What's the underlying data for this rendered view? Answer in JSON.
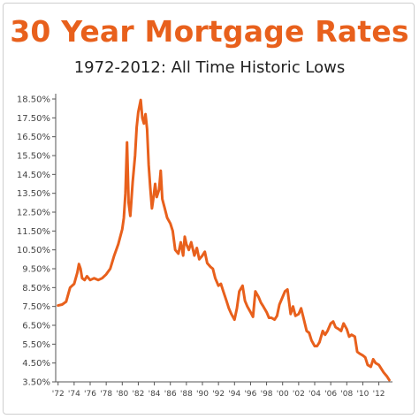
{
  "title": "30 Year Mortgage Rates",
  "subtitle": "1972-2012: All Time Historic Lows",
  "chart_data": {
    "type": "line",
    "title": "30 Year Mortgage Rates",
    "subtitle": "1972-2012: All Time Historic Lows",
    "xlabel": "",
    "ylabel": "",
    "xlim": [
      1971.7,
      2013.7
    ],
    "ylim": [
      3.5,
      18.5
    ],
    "grid": false,
    "legend": "none",
    "line_color": "#e8601c",
    "yticks": [
      3.5,
      4.5,
      5.5,
      6.5,
      7.5,
      8.5,
      9.5,
      10.5,
      11.5,
      12.5,
      13.5,
      14.5,
      15.5,
      16.5,
      17.5,
      18.5
    ],
    "ytick_labels": [
      "3.50%",
      "4.50%",
      "5.50%",
      "6.50%",
      "7.50%",
      "8.50%",
      "9.50%",
      "10.50%",
      "11.50%",
      "12.50%",
      "13.50%",
      "14.50%",
      "15.50%",
      "16.50%",
      "17.50%",
      "18.50%"
    ],
    "xticks": [
      1972,
      1974,
      1976,
      1978,
      1980,
      1982,
      1984,
      1986,
      1988,
      1990,
      1992,
      1994,
      1996,
      1998,
      2000,
      2002,
      2004,
      2006,
      2008,
      2010,
      2012
    ],
    "xtick_labels": [
      "'72",
      "'74",
      "'76",
      "'78",
      "'80",
      "'82",
      "'84",
      "'86",
      "'88",
      "'90",
      "'92",
      "'94",
      "'96",
      "'98",
      "'00",
      "'02",
      "'04",
      "'06",
      "'08",
      "'10",
      "'12"
    ],
    "series": [
      {
        "x": [
          1972.0,
          1972.5,
          1973.0,
          1973.5,
          1974.0,
          1974.4,
          1974.6,
          1974.8,
          1975.0,
          1975.3,
          1975.6,
          1976.0,
          1976.5,
          1977.0,
          1977.5,
          1978.0,
          1978.5,
          1979.0,
          1979.5,
          1980.0,
          1980.2,
          1980.4,
          1980.6,
          1980.8,
          1981.0,
          1981.3,
          1981.6,
          1981.8,
          1982.0,
          1982.3,
          1982.5,
          1982.7,
          1982.9,
          1983.1,
          1983.3,
          1983.5,
          1983.7,
          1983.9,
          1984.1,
          1984.3,
          1984.6,
          1984.8,
          1985.0,
          1985.3,
          1985.6,
          1986.0,
          1986.3,
          1986.6,
          1987.0,
          1987.3,
          1987.6,
          1987.8,
          1988.0,
          1988.3,
          1988.6,
          1989.0,
          1989.3,
          1989.6,
          1990.0,
          1990.3,
          1990.6,
          1991.0,
          1991.3,
          1991.6,
          1992.0,
          1992.3,
          1992.6,
          1993.0,
          1993.3,
          1993.6,
          1994.0,
          1994.3,
          1994.6,
          1995.0,
          1995.3,
          1995.6,
          1996.0,
          1996.3,
          1996.6,
          1997.0,
          1997.3,
          1997.6,
          1998.0,
          1998.3,
          1998.6,
          1999.0,
          1999.3,
          1999.6,
          2000.0,
          2000.3,
          2000.6,
          2001.0,
          2001.3,
          2001.6,
          2002.0,
          2002.3,
          2002.6,
          2003.0,
          2003.3,
          2003.6,
          2004.0,
          2004.3,
          2004.6,
          2005.0,
          2005.3,
          2005.6,
          2006.0,
          2006.3,
          2006.6,
          2007.0,
          2007.3,
          2007.6,
          2008.0,
          2008.3,
          2008.6,
          2009.0,
          2009.3,
          2009.6,
          2010.0,
          2010.3,
          2010.6,
          2011.0,
          2011.3,
          2011.6,
          2012.0,
          2012.3,
          2012.6,
          2013.0,
          2013.3
        ],
        "y": [
          7.55,
          7.6,
          7.75,
          8.5,
          8.7,
          9.3,
          9.75,
          9.5,
          9.0,
          8.9,
          9.1,
          8.9,
          9.0,
          8.9,
          9.0,
          9.2,
          9.5,
          10.2,
          10.8,
          11.6,
          12.2,
          13.5,
          16.2,
          13.0,
          12.3,
          14.1,
          15.5,
          17.0,
          17.8,
          18.45,
          17.5,
          17.2,
          17.7,
          16.9,
          15.0,
          13.8,
          12.7,
          13.3,
          14.0,
          13.3,
          13.7,
          14.7,
          13.2,
          12.7,
          12.2,
          11.9,
          11.5,
          10.5,
          10.3,
          10.9,
          10.2,
          11.2,
          10.8,
          10.5,
          10.9,
          10.2,
          10.6,
          10.0,
          10.2,
          10.4,
          9.8,
          9.6,
          9.5,
          9.0,
          8.6,
          8.7,
          8.3,
          7.8,
          7.4,
          7.1,
          6.8,
          7.4,
          8.3,
          8.6,
          7.8,
          7.5,
          7.2,
          6.95,
          8.3,
          8.0,
          7.7,
          7.5,
          7.2,
          6.9,
          6.9,
          6.8,
          7.0,
          7.6,
          8.0,
          8.3,
          8.4,
          7.1,
          7.5,
          7.0,
          7.1,
          7.4,
          6.9,
          6.2,
          6.1,
          5.7,
          5.4,
          5.4,
          5.6,
          6.2,
          6.0,
          6.2,
          6.6,
          6.7,
          6.4,
          6.3,
          6.2,
          6.6,
          6.3,
          5.9,
          6.0,
          5.9,
          5.1,
          5.0,
          4.9,
          4.8,
          4.4,
          4.3,
          4.7,
          4.5,
          4.4,
          4.2,
          4.0,
          3.8,
          3.6
        ]
      }
    ]
  }
}
